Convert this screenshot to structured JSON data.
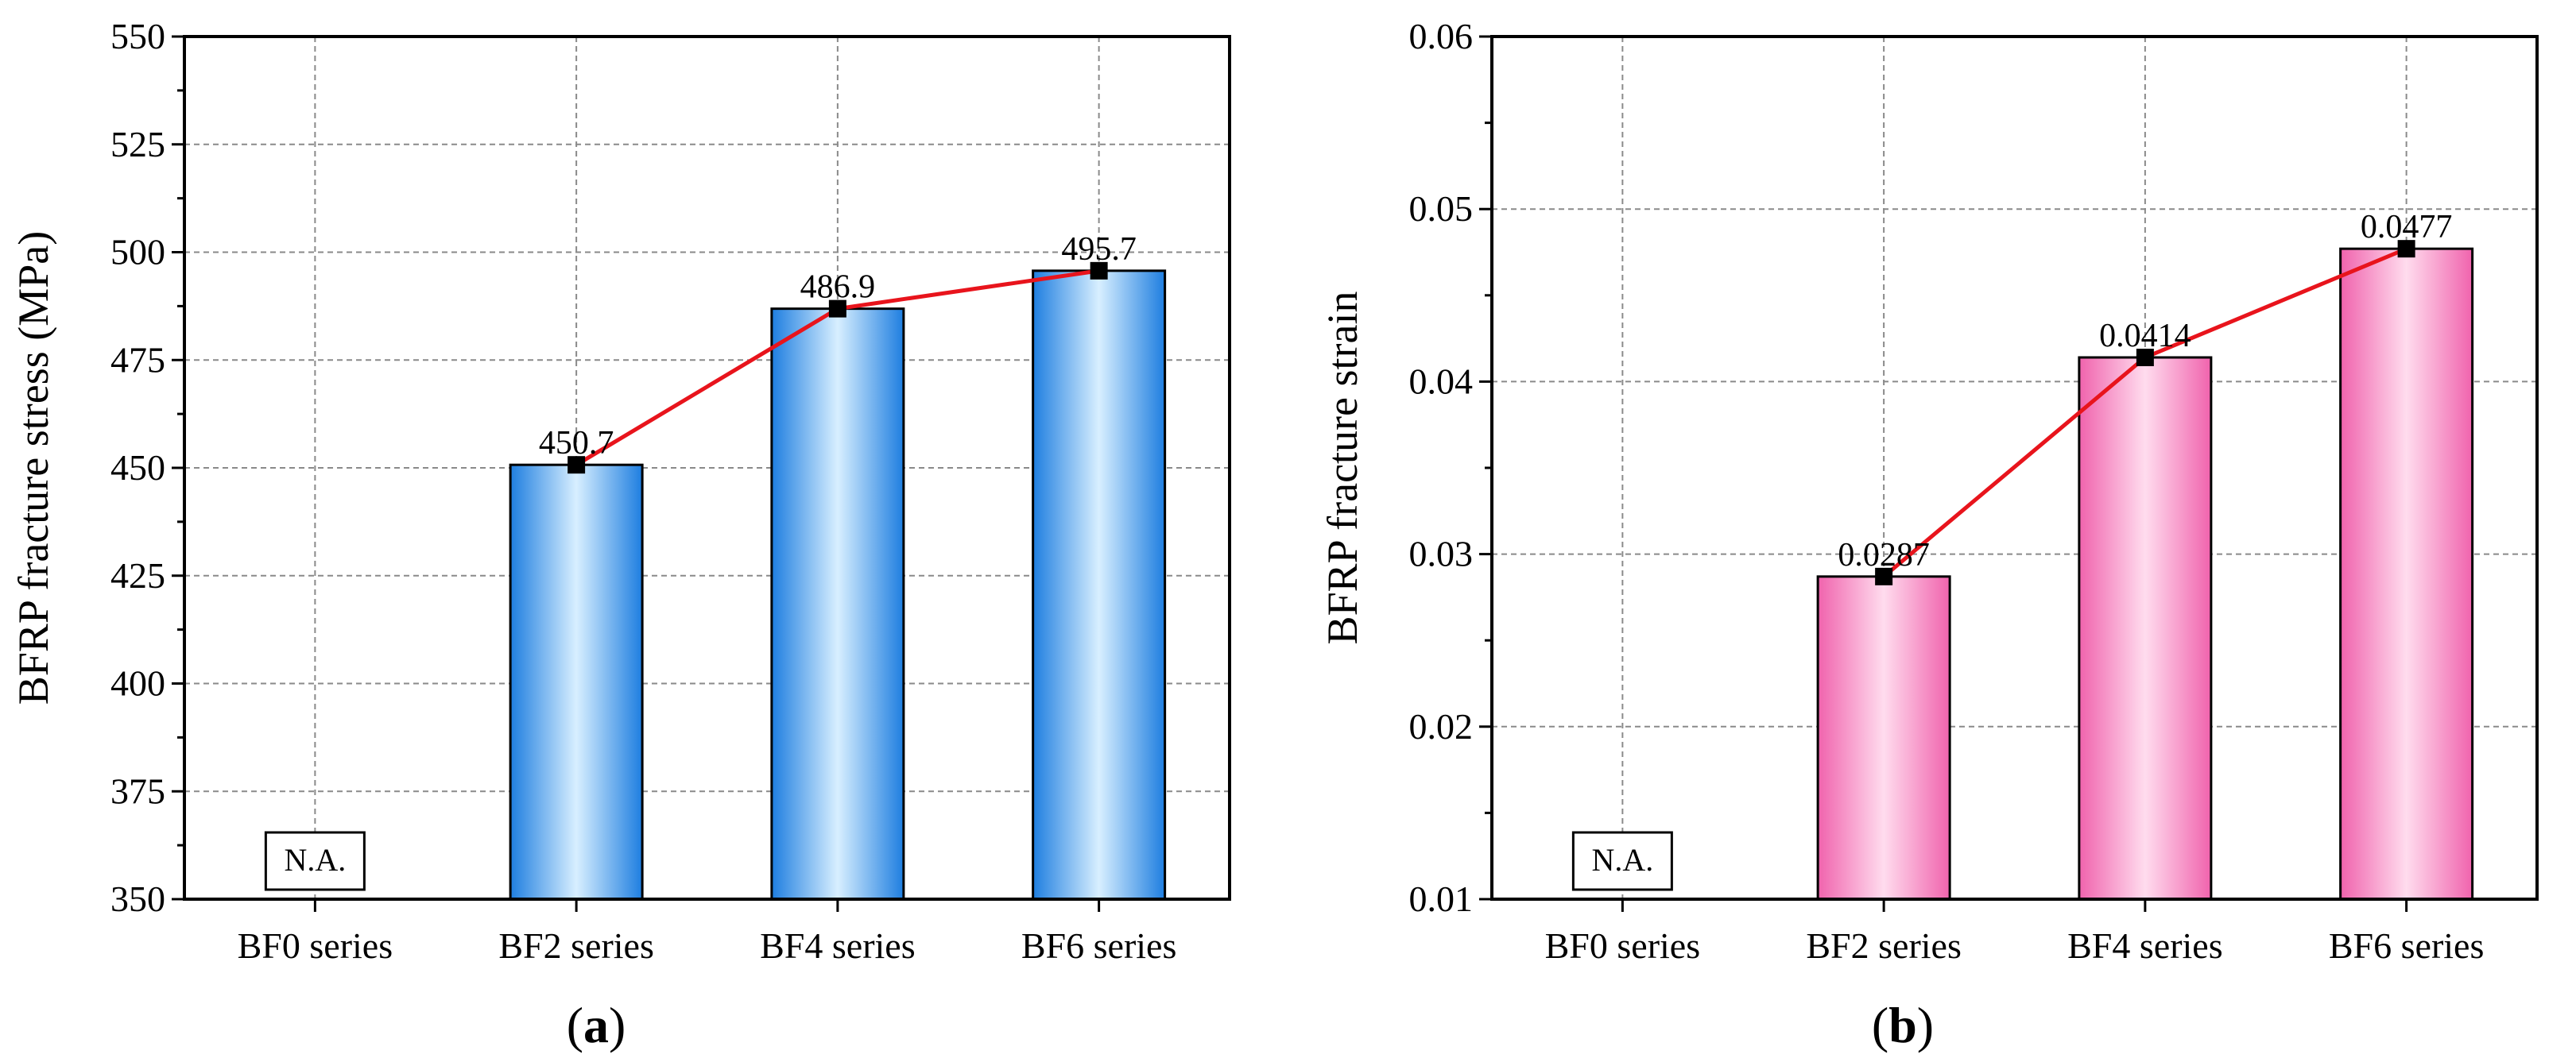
{
  "chart_data": [
    {
      "type": "bar",
      "panel_label": "(a)",
      "categories": [
        "BF0 series",
        "BF2 series",
        "BF4 series",
        "BF6 series"
      ],
      "values": [
        null,
        450.7,
        486.9,
        495.7
      ],
      "value_labels": [
        "",
        "450.7",
        "486.9",
        "495.7"
      ],
      "na_label": "N.A.",
      "ylabel": "BFRP fracture stress (MPa)",
      "xlabel": "",
      "ylim": [
        350,
        550
      ],
      "yticks": [
        350,
        375,
        400,
        425,
        450,
        475,
        500,
        525,
        550
      ],
      "ytick_labels": [
        "350",
        "375",
        "400",
        "425",
        "450",
        "475",
        "500",
        "525",
        "550"
      ],
      "grid": true,
      "overlay_line": true,
      "colors": {
        "bar_edge": "#1e7ee0",
        "bar_center": "#d8efff",
        "line": "#e8141c",
        "marker": "#000000"
      }
    },
    {
      "type": "bar",
      "panel_label": "(b)",
      "categories": [
        "BF0 series",
        "BF2 series",
        "BF4 series",
        "BF6 series"
      ],
      "values": [
        null,
        0.0287,
        0.0414,
        0.0477
      ],
      "value_labels": [
        "",
        "0.0287",
        "0.0414",
        "0.0477"
      ],
      "na_label": "N.A.",
      "ylabel": "BFRP fracture strain",
      "xlabel": "",
      "ylim": [
        0.01,
        0.06
      ],
      "yticks": [
        0.01,
        0.02,
        0.03,
        0.04,
        0.05,
        0.06
      ],
      "ytick_labels": [
        "0.01",
        "0.02",
        "0.03",
        "0.04",
        "0.05",
        "0.06"
      ],
      "grid": true,
      "overlay_line": true,
      "colors": {
        "bar_edge": "#f063ad",
        "bar_center": "#ffdcee",
        "line": "#e8141c",
        "marker": "#000000"
      }
    }
  ]
}
